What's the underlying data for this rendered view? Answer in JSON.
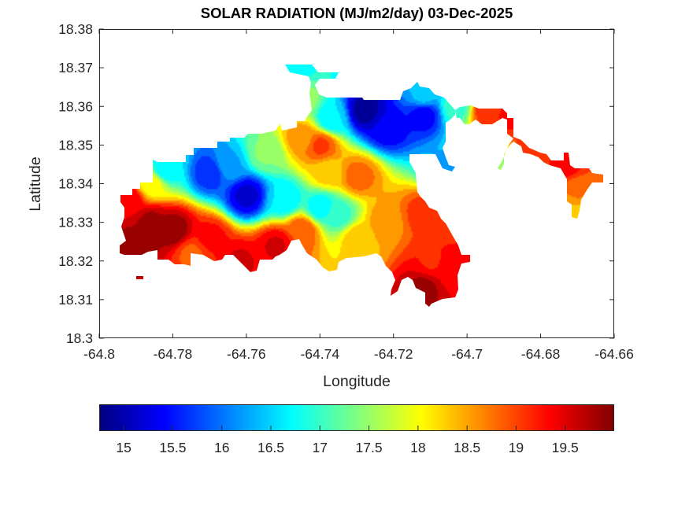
{
  "chart_data": {
    "type": "heatmap",
    "title": "SOLAR RADIATION (MJ/m2/day) 03-Dec-2025",
    "xlabel": "Longitude",
    "ylabel": "Latitude",
    "xlim": [
      -64.8,
      -64.66
    ],
    "ylim": [
      18.3,
      18.38
    ],
    "xticks": [
      -64.8,
      -64.78,
      -64.76,
      -64.74,
      -64.72,
      -64.7,
      -64.68,
      -64.66
    ],
    "xtick_labels": [
      "-64.8",
      "-64.78",
      "-64.76",
      "-64.74",
      "-64.72",
      "-64.7",
      "-64.68",
      "-64.66"
    ],
    "yticks": [
      18.3,
      18.31,
      18.32,
      18.33,
      18.34,
      18.35,
      18.36,
      18.37,
      18.38
    ],
    "ytick_labels": [
      "18.3",
      "18.31",
      "18.32",
      "18.33",
      "18.34",
      "18.35",
      "18.36",
      "18.37",
      "18.38"
    ],
    "grid": false,
    "colormap": "jet",
    "colorbar": {
      "orientation": "horizontal",
      "location": "bottom",
      "range": [
        14.75,
        20.0
      ],
      "ticks": [
        15,
        15.5,
        16,
        16.5,
        17,
        17.5,
        18,
        18.5,
        19,
        19.5
      ],
      "tick_labels": [
        "15",
        "15.5",
        "16",
        "16.5",
        "17",
        "17.5",
        "18",
        "18.5",
        "19",
        "19.5"
      ]
    },
    "contour_levels": 20,
    "sample_points": [
      {
        "lon": -64.79,
        "lat": 18.324,
        "value": 19.9
      },
      {
        "lon": -64.786,
        "lat": 18.33,
        "value": 19.8
      },
      {
        "lon": -64.78,
        "lat": 18.328,
        "value": 19.9
      },
      {
        "lon": -64.792,
        "lat": 18.336,
        "value": 19.4
      },
      {
        "lon": -64.775,
        "lat": 18.322,
        "value": 18.9
      },
      {
        "lon": -64.77,
        "lat": 18.326,
        "value": 19.3
      },
      {
        "lon": -64.762,
        "lat": 18.32,
        "value": 19.5
      },
      {
        "lon": -64.752,
        "lat": 18.324,
        "value": 19.5
      },
      {
        "lon": -64.745,
        "lat": 18.328,
        "value": 18.9
      },
      {
        "lon": -64.786,
        "lat": 18.34,
        "value": 18.0
      },
      {
        "lon": -64.782,
        "lat": 18.344,
        "value": 16.6
      },
      {
        "lon": -64.77,
        "lat": 18.343,
        "value": 15.6
      },
      {
        "lon": -64.76,
        "lat": 18.337,
        "value": 15.2
      },
      {
        "lon": -64.765,
        "lat": 18.345,
        "value": 16.3
      },
      {
        "lon": -64.75,
        "lat": 18.336,
        "value": 16.6
      },
      {
        "lon": -64.74,
        "lat": 18.334,
        "value": 16.7
      },
      {
        "lon": -64.735,
        "lat": 18.332,
        "value": 17.0
      },
      {
        "lon": -64.73,
        "lat": 18.326,
        "value": 18.3
      },
      {
        "lon": -64.722,
        "lat": 18.33,
        "value": 18.6
      },
      {
        "lon": -64.755,
        "lat": 18.348,
        "value": 17.4
      },
      {
        "lon": -64.745,
        "lat": 18.352,
        "value": 18.6
      },
      {
        "lon": -64.74,
        "lat": 18.35,
        "value": 19.0
      },
      {
        "lon": -64.73,
        "lat": 18.342,
        "value": 18.8
      },
      {
        "lon": -64.738,
        "lat": 18.343,
        "value": 18.3
      },
      {
        "lon": -64.745,
        "lat": 18.362,
        "value": 17.5
      },
      {
        "lon": -64.748,
        "lat": 18.369,
        "value": 16.6
      },
      {
        "lon": -64.737,
        "lat": 18.357,
        "value": 16.6
      },
      {
        "lon": -64.728,
        "lat": 18.359,
        "value": 14.9
      },
      {
        "lon": -64.722,
        "lat": 18.355,
        "value": 15.3
      },
      {
        "lon": -64.712,
        "lat": 18.358,
        "value": 15.4
      },
      {
        "lon": -64.712,
        "lat": 18.363,
        "value": 16.4
      },
      {
        "lon": -64.706,
        "lat": 18.345,
        "value": 16.3
      },
      {
        "lon": -64.703,
        "lat": 18.36,
        "value": 17.0
      },
      {
        "lon": -64.712,
        "lat": 18.332,
        "value": 19.1
      },
      {
        "lon": -64.71,
        "lat": 18.32,
        "value": 19.2
      },
      {
        "lon": -64.712,
        "lat": 18.313,
        "value": 19.8
      },
      {
        "lon": -64.704,
        "lat": 18.318,
        "value": 19.3
      },
      {
        "lon": -64.695,
        "lat": 18.359,
        "value": 19.1
      },
      {
        "lon": -64.688,
        "lat": 18.358,
        "value": 19.3
      },
      {
        "lon": -64.682,
        "lat": 18.35,
        "value": 19.1
      },
      {
        "lon": -64.673,
        "lat": 18.345,
        "value": 19.3
      },
      {
        "lon": -64.67,
        "lat": 18.338,
        "value": 18.7
      },
      {
        "lon": -64.67,
        "lat": 18.333,
        "value": 18.4
      },
      {
        "lon": -64.692,
        "lat": 18.345,
        "value": 17.6
      }
    ]
  }
}
